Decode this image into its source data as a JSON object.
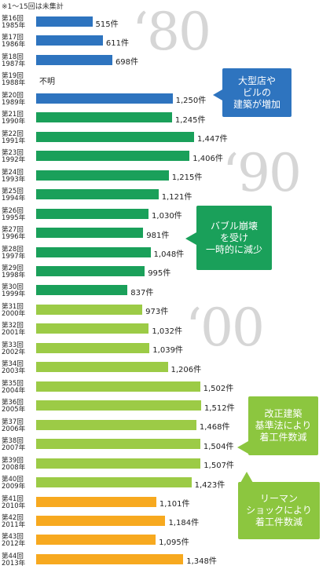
{
  "note": "※1～15回は未集計",
  "decades": [
    "‘80",
    "‘90",
    "‘00"
  ],
  "callouts": [
    {
      "text": "大型店や\nビルの\n建築が増加",
      "color": "#2e74bf"
    },
    {
      "text": "バブル崩壊\nを受け\n一時的に減少",
      "color": "#1aa05a"
    },
    {
      "text": "改正建築\n基準法により\n着工件数減",
      "color": "#8cc63f"
    },
    {
      "text": "リーマン\nショックにより\n着工件数減",
      "color": "#8cc63f"
    }
  ],
  "colors": {
    "blue": "#2e74bf",
    "green": "#1aa05a",
    "light_green": "#9ccb46",
    "orange": "#f7a91f"
  },
  "chart_data": {
    "type": "bar",
    "orientation": "horizontal",
    "unit": "件",
    "categories": [
      "第16回\n1985年",
      "第17回\n1986年",
      "第18回\n1987年",
      "第19回\n1988年",
      "第20回\n1989年",
      "第21回\n1990年",
      "第22回\n1991年",
      "第23回\n1992年",
      "第24回\n1993年",
      "第25回\n1994年",
      "第26回\n1995年",
      "第27回\n1996年",
      "第28回\n1997年",
      "第29回\n1998年",
      "第30回\n1999年",
      "第31回\n2000年",
      "第32回\n2001年",
      "第33回\n2002年",
      "第34回\n2003年",
      "第35回\n2004年",
      "第36回\n2005年",
      "第37回\n2006年",
      "第38回\n2007年",
      "第39回\n2008年",
      "第40回\n2009年",
      "第41回\n2010年",
      "第42回\n2011年",
      "第43回\n2012年",
      "第44回\n2013年"
    ],
    "values": [
      515,
      611,
      698,
      null,
      1250,
      1245,
      1447,
      1406,
      1215,
      1121,
      1030,
      981,
      1048,
      995,
      837,
      973,
      1032,
      1039,
      1206,
      1502,
      1512,
      1468,
      1504,
      1507,
      1423,
      1101,
      1184,
      1095,
      1348
    ],
    "labels": [
      "515件",
      "611件",
      "698件",
      "不明",
      "1,250件",
      "1,245件",
      "1,447件",
      "1,406件",
      "1,215件",
      "1,121件",
      "1,030件",
      "981件",
      "1,048件",
      "995件",
      "837件",
      "973件",
      "1,032件",
      "1,039件",
      "1,206件",
      "1,502件",
      "1,512件",
      "1,468件",
      "1,504件",
      "1,507件",
      "1,423件",
      "1,101件",
      "1,184件",
      "1,095件",
      "1,348件"
    ],
    "color_groups": [
      "blue",
      "blue",
      "blue",
      "blue",
      "blue",
      "green",
      "green",
      "green",
      "green",
      "green",
      "green",
      "green",
      "green",
      "green",
      "green",
      "light_green",
      "light_green",
      "light_green",
      "light_green",
      "light_green",
      "light_green",
      "light_green",
      "light_green",
      "light_green",
      "light_green",
      "orange",
      "orange",
      "orange",
      "orange"
    ]
  }
}
